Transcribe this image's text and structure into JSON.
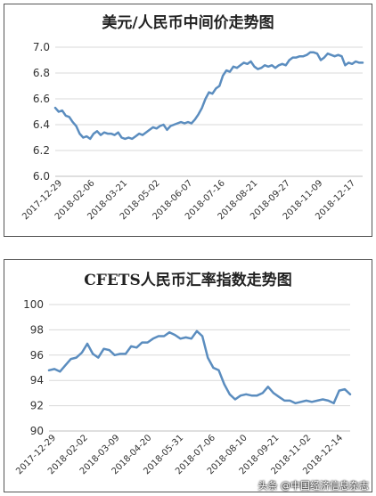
{
  "charts": [
    {
      "title": "美元/人民币中间价走势图",
      "type": "line",
      "color": "#5B8DBF",
      "ylim": [
        6.0,
        7.0
      ],
      "yticks": [
        "6.0",
        "6.2",
        "6.4",
        "6.6",
        "6.8",
        "7.0"
      ],
      "xticks": [
        "2017-12-29",
        "2018-02-06",
        "2018-03-21",
        "2018-05-02",
        "2018-06-07",
        "2018-07-16",
        "2018-08-21",
        "2018-09-27",
        "2018-11-09",
        "2018-12-17"
      ],
      "chart_data": {
        "type": "line",
        "series": [
          {
            "values": [
              6.53,
              6.5,
              6.51,
              6.47,
              6.46,
              6.42,
              6.39,
              6.33,
              6.3,
              6.31,
              6.29,
              6.33,
              6.35,
              6.32,
              6.34,
              6.33,
              6.33,
              6.32,
              6.34,
              6.3,
              6.29,
              6.3,
              6.29,
              6.31,
              6.33,
              6.32,
              6.34,
              6.36,
              6.38,
              6.37,
              6.39,
              6.4,
              6.36,
              6.39,
              6.4,
              6.41,
              6.42,
              6.41,
              6.42,
              6.41,
              6.44,
              6.48,
              6.53,
              6.6,
              6.65,
              6.64,
              6.68,
              6.7,
              6.78,
              6.82,
              6.81,
              6.85,
              6.84,
              6.86,
              6.88,
              6.87,
              6.89,
              6.85,
              6.83,
              6.84,
              6.86,
              6.85,
              6.86,
              6.84,
              6.86,
              6.87,
              6.86,
              6.9,
              6.92,
              6.92,
              6.93,
              6.93,
              6.94,
              6.96,
              6.96,
              6.95,
              6.9,
              6.92,
              6.95,
              6.94,
              6.93,
              6.94,
              6.93,
              6.86,
              6.88,
              6.87,
              6.89,
              6.88,
              6.88
            ]
          }
        ]
      }
    },
    {
      "title": "CFETS人民币汇率指数走势图",
      "type": "line",
      "color": "#5B8DBF",
      "ylim": [
        90,
        100
      ],
      "yticks": [
        "90",
        "92",
        "94",
        "96",
        "98",
        "100"
      ],
      "xticks": [
        "2017-12-29",
        "2018-02-02",
        "2018-03-09",
        "2018-04-20",
        "2018-05-31",
        "2018-07-06",
        "2018-08-10",
        "2018-09-21",
        "2018-11-02",
        "2018-12-14"
      ],
      "chart_data": {
        "type": "line",
        "series": [
          {
            "values": [
              94.8,
              94.9,
              94.7,
              95.2,
              95.7,
              95.8,
              96.2,
              96.9,
              96.1,
              95.8,
              96.5,
              96.4,
              96.0,
              96.1,
              96.1,
              96.7,
              96.6,
              97.0,
              97.0,
              97.3,
              97.5,
              97.5,
              97.8,
              97.6,
              97.3,
              97.4,
              97.3,
              97.9,
              97.5,
              95.8,
              95.0,
              94.8,
              93.7,
              92.9,
              92.5,
              92.8,
              92.9,
              92.8,
              92.8,
              93.0,
              93.5,
              93.0,
              92.7,
              92.4,
              92.4,
              92.2,
              92.3,
              92.4,
              92.3,
              92.4,
              92.5,
              92.4,
              92.2,
              93.2,
              93.3,
              92.9
            ]
          }
        ]
      }
    }
  ],
  "watermark": "头条 @中国经济信息杂志"
}
